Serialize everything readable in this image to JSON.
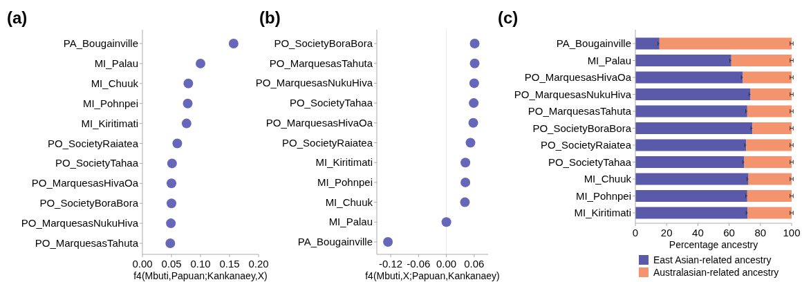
{
  "chart_data": [
    {
      "type": "scatter",
      "title": "(a)",
      "orientation": "horizontal",
      "marker": "circle",
      "color": "#5557b0",
      "categories": [
        "PA_Bougainville",
        "MI_Palau",
        "MI_Chuuk",
        "MI_Pohnpei",
        "MI_Kiritimati",
        "PO_SocietyRaiatea",
        "PO_SocietyTahaa",
        "PO_MarquesasHivaOa",
        "PO_SocietyBoraBora",
        "PO_MarquesasNukuHiva",
        "PO_MarquesasTahuta"
      ],
      "values": [
        0.157,
        0.1,
        0.079,
        0.078,
        0.076,
        0.06,
        0.051,
        0.05,
        0.05,
        0.049,
        0.048
      ],
      "xlim": [
        0,
        0.2
      ],
      "xticks": [
        {
          "value": 0,
          "label": "0.00"
        },
        0.05,
        {
          "value": 0.1,
          "label": "0.10"
        },
        0.15,
        {
          "value": 0.2,
          "label": "0.20"
        }
      ],
      "xlabel": "f4(Mbuti,Papuan;Kankanaey,X)"
    },
    {
      "type": "scatter",
      "title": "(b)",
      "orientation": "horizontal",
      "marker": "circle",
      "color": "#5557b0",
      "categories": [
        "PO_SocietyBoraBora",
        "PO_MarquesasTahuta",
        "PO_MarquesasNukuHiva",
        "PO_SocietyTahaa",
        "PO_MarquesasHivaOa",
        "PO_SocietyRaiatea",
        "MI_Kiritimati",
        "MI_Pohnpei",
        "MI_Chuuk",
        "MI_Palau",
        "PA_Bougainville"
      ],
      "values": [
        0.061,
        0.061,
        0.06,
        0.059,
        0.058,
        0.052,
        0.041,
        0.041,
        0.04,
        0.0,
        -0.126
      ],
      "xlim": [
        -0.15,
        0.09
      ],
      "xticks": [
        -0.12,
        -0.06,
        {
          "value": 0,
          "label": "0.00"
        },
        0.06
      ],
      "xlabel": "f4(Mbuti,X;Papuan,Kankanaey)",
      "ref_lines": [
        {
          "axis": "x",
          "value": 0,
          "color": "#e8e8e8"
        }
      ]
    },
    {
      "type": "bar",
      "title": "(c)",
      "orientation": "horizontal",
      "stacked": true,
      "legend": "bottom",
      "categories": [
        "PA_Bougainville",
        "MI_Palau",
        "PO_MarquesasHivaOa",
        "PO_MarquesasNukuHiva",
        "PO_MarquesasTahuta",
        "PO_SocietyBoraBora",
        "PO_SocietyRaiatea",
        "PO_SocietyTahaa",
        "MI_Chuuk",
        "MI_Pohnpei",
        "MI_Kiritimati"
      ],
      "series": [
        {
          "name": "East Asian-related ancestry",
          "color": "#5b5aaa",
          "values": [
            15.4,
            61.4,
            68.8,
            73.7,
            71.6,
            74.9,
            70.9,
            69.7,
            72.4,
            71.6,
            71.9
          ],
          "errors": [
            1,
            1,
            1,
            1,
            1,
            1,
            1,
            1,
            1,
            1,
            1
          ]
        },
        {
          "name": "Australasian-related ancestry",
          "color": "#f4946f",
          "values": [
            84.6,
            38.6,
            31.2,
            26.3,
            28.4,
            25.1,
            29.1,
            30.3,
            27.6,
            28.4,
            28.1
          ],
          "errors": [
            1,
            1,
            1,
            1,
            1,
            1,
            1,
            1,
            1,
            1,
            1
          ]
        }
      ],
      "xlim": [
        0,
        100
      ],
      "xticks": [
        0,
        20,
        40,
        60,
        80,
        100
      ],
      "xlabel": "Percentage ancestry"
    }
  ]
}
